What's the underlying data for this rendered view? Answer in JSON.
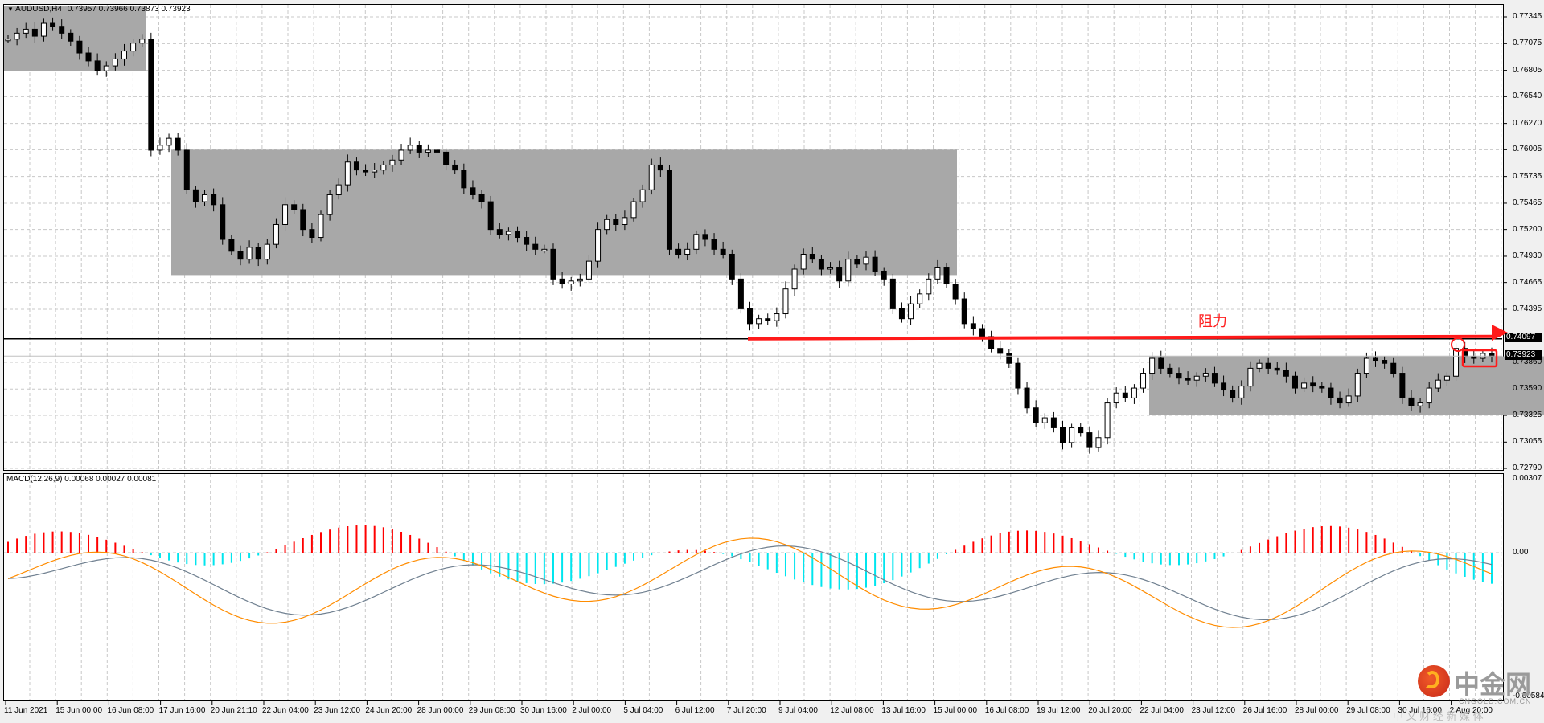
{
  "header": {
    "symbol": "AUDUSD,H4",
    "ohlc": "0.73957 0.73966 0.73873 0.73923",
    "menu_icon": "triangle-down-icon"
  },
  "macd_header": {
    "label": "MACD(12,26,9) 0.00068 0.00027 0.00081"
  },
  "annotation": {
    "resistance_label": "阻力",
    "resistance_color": "#ff1a1a"
  },
  "price_tags": {
    "resistance": "0.74097",
    "current": "0.73923"
  },
  "price_axis": [
    "0.77345",
    "0.77075",
    "0.76805",
    "0.76540",
    "0.76270",
    "0.76005",
    "0.75735",
    "0.75465",
    "0.75200",
    "0.74930",
    "0.74665",
    "0.74395",
    "0.74097",
    "0.73860",
    "0.73590",
    "0.73325",
    "0.73055",
    "0.72790"
  ],
  "macd_axis": [
    "0.00307",
    "0.00",
    "-0.00584"
  ],
  "time_axis": [
    "11 Jun 2021",
    "15 Jun 00:00",
    "16 Jun 08:00",
    "17 Jun 16:00",
    "20 Jun 21:10",
    "22 Jun 04:00",
    "23 Jun 12:00",
    "24 Jun 20:00",
    "28 Jun 00:00",
    "29 Jun 08:00",
    "30 Jun 16:00",
    "2 Jul 00:00",
    "5 Jul 04:00",
    "6 Jul 12:00",
    "7 Jul 20:00",
    "9 Jul 04:00",
    "12 Jul 08:00",
    "13 Jul 16:00",
    "15 Jul 00:00",
    "16 Jul 08:00",
    "19 Jul 12:00",
    "20 Jul 20:00",
    "22 Jul 04:00",
    "23 Jul 12:00",
    "26 Jul 16:00",
    "28 Jul 00:00",
    "29 Jul 08:00",
    "30 Jul 16:00",
    "2 Aug 20:00"
  ],
  "watermark": {
    "brand": "中金网",
    "domain": "CNGOLD.COM.CN",
    "tagline": "中 文 财 经 新 媒 体"
  },
  "chart_data": [
    {
      "type": "candlestick",
      "title": "AUDUSD,H4",
      "ohlc_latest": {
        "open": 0.73957,
        "high": 0.73966,
        "low": 0.73873,
        "close": 0.73923
      },
      "ylim": [
        0.7279,
        0.7745
      ],
      "y_ticks": [
        0.77345,
        0.77075,
        0.76805,
        0.7654,
        0.7627,
        0.76005,
        0.75735,
        0.75465,
        0.752,
        0.7493,
        0.74665,
        0.74395,
        0.7386,
        0.7359,
        0.73325,
        0.73055,
        0.7279
      ],
      "x_ticks": [
        "11 Jun 2021",
        "15 Jun 00:00",
        "16 Jun 08:00",
        "17 Jun 16:00",
        "20 Jun 21:10",
        "22 Jun 04:00",
        "23 Jun 12:00",
        "24 Jun 20:00",
        "28 Jun 00:00",
        "29 Jun 08:00",
        "30 Jun 16:00",
        "2 Jul 00:00",
        "5 Jul 04:00",
        "6 Jul 12:00",
        "7 Jul 20:00",
        "9 Jul 04:00",
        "12 Jul 08:00",
        "13 Jul 16:00",
        "15 Jul 00:00",
        "16 Jul 08:00",
        "19 Jul 12:00",
        "20 Jul 20:00",
        "22 Jul 04:00",
        "23 Jul 12:00",
        "26 Jul 16:00",
        "28 Jul 00:00",
        "29 Jul 08:00",
        "30 Jul 16:00",
        "2 Aug 20:00"
      ],
      "grid": true,
      "horizontal_lines": [
        {
          "price": 0.74097,
          "color": "#000000",
          "label": "0.74097"
        },
        {
          "price": 0.73923,
          "color": "#c0c0c0",
          "label": "0.73923"
        }
      ],
      "annotations": [
        {
          "type": "arrow",
          "label": "阻力",
          "price": 0.74097,
          "color": "#ff1a1a"
        },
        {
          "type": "rectangle",
          "from": "11 Jun 2021",
          "to": "15 Jun",
          "top": 0.7745,
          "bottom": 0.768,
          "color": "#a8a8a8"
        },
        {
          "type": "rectangle",
          "from": "17 Jun",
          "to": "15 Jul",
          "top": 0.76,
          "bottom": 0.7474,
          "color": "#a8a8a8"
        },
        {
          "type": "rectangle",
          "from": "22 Jul",
          "to": "2 Aug",
          "top": 0.7392,
          "bottom": 0.7333,
          "color": "#a8a8a8"
        },
        {
          "type": "circle",
          "near": "2 Aug",
          "price": 0.74,
          "color": "#ff1a1a"
        },
        {
          "type": "box",
          "near": "2 Aug 20:00",
          "top": 0.7393,
          "bottom": 0.738,
          "color": "#ff1a1a"
        }
      ],
      "approx_close_path": [
        {
          "t": "11 Jun",
          "c": 0.772
        },
        {
          "t": "15 Jun",
          "c": 0.7705
        },
        {
          "t": "16 Jun",
          "c": 0.762
        },
        {
          "t": "17 Jun",
          "c": 0.7555
        },
        {
          "t": "18 Jun",
          "c": 0.749
        },
        {
          "t": "21 Jun",
          "c": 0.751
        },
        {
          "t": "23 Jun",
          "c": 0.7575
        },
        {
          "t": "25 Jun",
          "c": 0.759
        },
        {
          "t": "28 Jun",
          "c": 0.757
        },
        {
          "t": "29 Jun",
          "c": 0.752
        },
        {
          "t": "1 Jul",
          "c": 0.746
        },
        {
          "t": "2 Jul",
          "c": 0.753
        },
        {
          "t": "6 Jul",
          "c": 0.758
        },
        {
          "t": "6 Jul",
          "c": 0.75
        },
        {
          "t": "7 Jul",
          "c": 0.744
        },
        {
          "t": "9 Jul",
          "c": 0.7475
        },
        {
          "t": "12 Jul",
          "c": 0.749
        },
        {
          "t": "13 Jul",
          "c": 0.744
        },
        {
          "t": "14 Jul",
          "c": 0.748
        },
        {
          "t": "15 Jul",
          "c": 0.744
        },
        {
          "t": "16 Jul",
          "c": 0.74
        },
        {
          "t": "19 Jul",
          "c": 0.733
        },
        {
          "t": "20 Jul",
          "c": 0.73
        },
        {
          "t": "21 Jul",
          "c": 0.735
        },
        {
          "t": "22 Jul",
          "c": 0.738
        },
        {
          "t": "26 Jul",
          "c": 0.737
        },
        {
          "t": "28 Jul",
          "c": 0.735
        },
        {
          "t": "29 Jul",
          "c": 0.7385
        },
        {
          "t": "30 Jul",
          "c": 0.7345
        },
        {
          "t": "2 Aug",
          "c": 0.7392
        }
      ]
    },
    {
      "type": "macd",
      "title": "MACD(12,26,9)",
      "values_latest": {
        "macd": 0.00068,
        "signal": 0.00027,
        "histogram": 0.00081
      },
      "ylim": [
        -0.00584,
        0.00307
      ],
      "y_ticks": [
        0.00307,
        0.0,
        -0.00584
      ],
      "series": [
        {
          "name": "histogram",
          "positive_color": "#ff0000",
          "negative_color": "#00e5ee"
        },
        {
          "name": "MACD",
          "color": "#ff8c00"
        },
        {
          "name": "Signal",
          "color": "#708090"
        }
      ]
    }
  ]
}
